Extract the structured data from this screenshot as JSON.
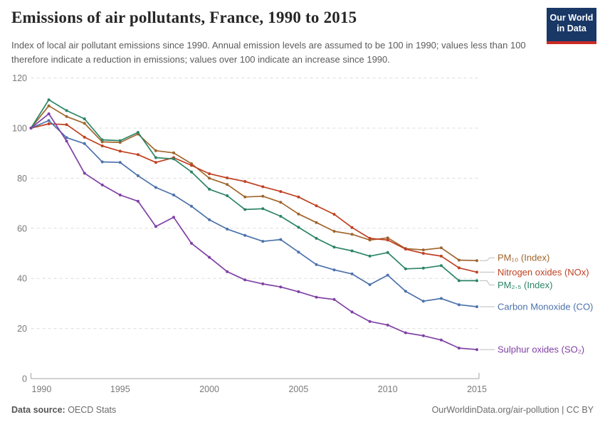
{
  "logo": {
    "line1": "Our World",
    "line2": "in Data",
    "bg_color": "#1A3866",
    "accent_color": "#CC2B25"
  },
  "chart_data": {
    "type": "line",
    "title": "Emissions of air pollutants, France, 1990 to 2015",
    "subtitle": "Index of local air pollutant emissions since 1990. Annual emission levels are assumed to be 100 in 1990; values less than 100 therefore indicate a reduction in emissions; values over 100 indicate an increase since 1990.",
    "x": [
      1990,
      1991,
      1992,
      1993,
      1994,
      1995,
      1996,
      1997,
      1998,
      1999,
      2000,
      2001,
      2002,
      2003,
      2004,
      2005,
      2006,
      2007,
      2008,
      2009,
      2010,
      2011,
      2012,
      2013,
      2014,
      2015
    ],
    "x_ticks": [
      1990,
      1995,
      2000,
      2005,
      2010,
      2015
    ],
    "ylim": [
      0,
      120
    ],
    "y_ticks": [
      0,
      20,
      40,
      60,
      80,
      100,
      120
    ],
    "grid": true,
    "legend_position": "right-of-line-ends",
    "series": [
      {
        "name": "PM₁₀ (Index)",
        "color": "#A0652D",
        "label_dy": -4,
        "values": [
          100,
          108.9,
          104.6,
          101.9,
          94.5,
          94.3,
          97.6,
          91.0,
          90.1,
          85.8,
          80.0,
          77.5,
          72.5,
          72.8,
          70.4,
          65.7,
          62.3,
          58.8,
          57.6,
          55.3,
          56.2,
          51.9,
          51.4,
          52.2,
          47.3,
          47.1
        ]
      },
      {
        "name": "Nitrogen oxides (NOx)",
        "color": "#BF4122",
        "label_dy": 0,
        "values": [
          100,
          101.7,
          101.4,
          96.4,
          92.9,
          90.8,
          89.4,
          86.3,
          88.2,
          85.1,
          81.8,
          80.1,
          78.7,
          76.6,
          74.7,
          72.5,
          69.0,
          65.6,
          60.3,
          56.0,
          55.3,
          51.7,
          50.0,
          48.9,
          44.2,
          42.5
        ]
      },
      {
        "name": "PM₂.₅ (Index)",
        "color": "#2C8465",
        "label_dy": 6,
        "values": [
          100,
          111.3,
          107.0,
          103.7,
          95.3,
          95.0,
          98.3,
          88.2,
          87.7,
          82.5,
          75.6,
          73.0,
          67.5,
          67.8,
          64.8,
          60.4,
          56.0,
          52.5,
          51.0,
          48.9,
          50.3,
          43.8,
          44.1,
          45.1,
          39.1,
          39.1
        ]
      },
      {
        "name": "Carbon Monoxide (CO)",
        "color": "#4C72AB",
        "label_dy": 0,
        "values": [
          100,
          103.0,
          96.2,
          93.8,
          86.5,
          86.3,
          81.0,
          76.3,
          73.3,
          68.8,
          63.4,
          59.7,
          57.2,
          54.8,
          55.5,
          50.5,
          45.5,
          43.4,
          41.8,
          37.5,
          41.3,
          34.9,
          30.9,
          32.0,
          29.5,
          28.7
        ]
      },
      {
        "name": "Sulphur oxides (SO₂)",
        "color": "#8041A5",
        "label_dy": 0,
        "values": [
          100,
          105.7,
          94.8,
          82.0,
          77.3,
          73.3,
          70.8,
          60.7,
          64.4,
          54.0,
          48.4,
          42.7,
          39.4,
          37.8,
          36.6,
          34.7,
          32.5,
          31.6,
          26.6,
          22.8,
          21.4,
          18.3,
          17.1,
          15.4,
          12.2,
          11.6
        ]
      }
    ]
  },
  "footer": {
    "source_label": "Data source:",
    "source_value": " OECD Stats",
    "credit": "OurWorldinData.org/air-pollution | CC BY"
  }
}
